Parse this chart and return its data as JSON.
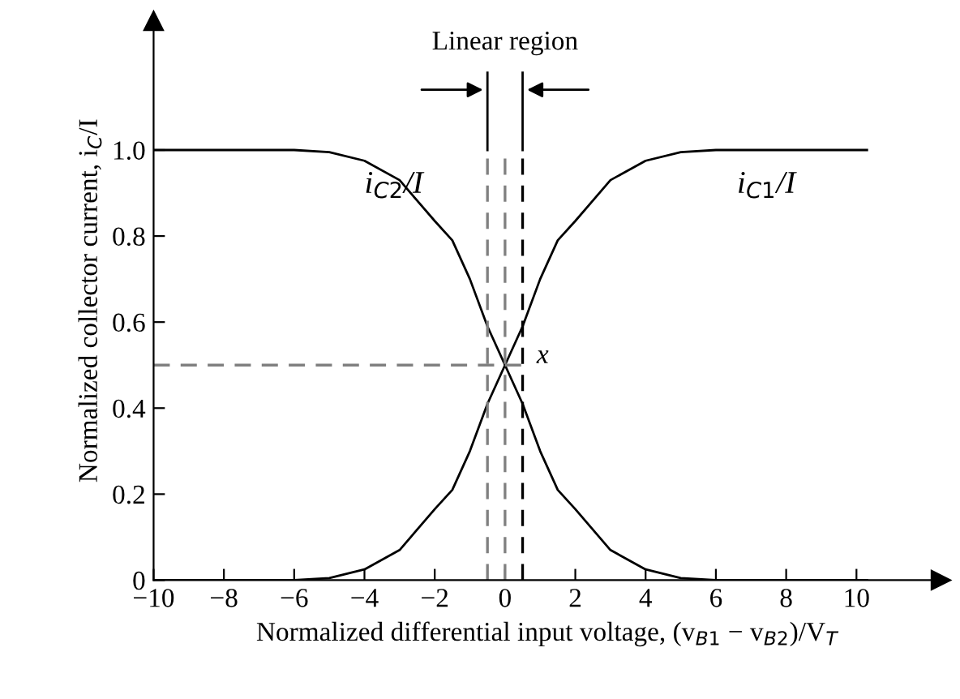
{
  "chart_data": {
    "type": "line",
    "xlabel": "Normalized differential input voltage, (v$_{B1}$ − v$_{B2}$)/V$_{T}$",
    "ylabel": "Normalized collector current, i$_{C}$/I",
    "x": [
      -10,
      -6,
      -5,
      -4,
      -3,
      -2,
      -1.5,
      -1,
      -0.5,
      0,
      0.5,
      1,
      1.5,
      2,
      3,
      4,
      5,
      6,
      10.3
    ],
    "series": [
      {
        "name": "i$_{C2}$/I",
        "color": "#000000",
        "values": [
          1.0,
          1.0,
          0.995,
          0.975,
          0.93,
          0.835,
          0.79,
          0.7,
          0.59,
          0.5,
          0.41,
          0.3,
          0.21,
          0.165,
          0.07,
          0.025,
          0.005,
          0.0,
          0.0
        ]
      },
      {
        "name": "i$_{C1}$/I",
        "color": "#000000",
        "values": [
          0.0,
          0.0,
          0.005,
          0.025,
          0.07,
          0.165,
          0.21,
          0.3,
          0.41,
          0.5,
          0.59,
          0.7,
          0.79,
          0.835,
          0.93,
          0.975,
          0.995,
          1.0,
          1.0
        ]
      }
    ],
    "xlim": [
      -10,
      12.4
    ],
    "ylim": [
      0,
      1.3
    ],
    "xticks": [
      {
        "value": -10,
        "label": "−10"
      },
      {
        "value": -8,
        "label": "−8"
      },
      {
        "value": -6,
        "label": "−6"
      },
      {
        "value": -4,
        "label": "−4"
      },
      {
        "value": -2,
        "label": "−2"
      },
      0,
      2,
      4,
      6,
      8,
      10
    ],
    "yticks": [
      0,
      0.2,
      0.4,
      0.6,
      0.8,
      {
        "value": 1,
        "label": "1.0"
      }
    ],
    "ref_lines": [
      {
        "axis": "x",
        "value": -0.5,
        "color": "#808080",
        "line_style": "dashed"
      },
      {
        "axis": "x",
        "value": 0,
        "color": "#808080",
        "line_style": "dashed"
      },
      {
        "axis": "x",
        "value": 0.5,
        "color": "#000000",
        "line_style": "dashed"
      },
      {
        "axis": "y",
        "value": 0.5,
        "color": "#808080",
        "line_style": "dashed"
      }
    ],
    "annotations": [
      {
        "text": "Linear region",
        "x": 0.5,
        "y": 1.0
      },
      "x"
    ],
    "grid": false,
    "legend": false,
    "marker": "none",
    "line_style": "solid"
  }
}
